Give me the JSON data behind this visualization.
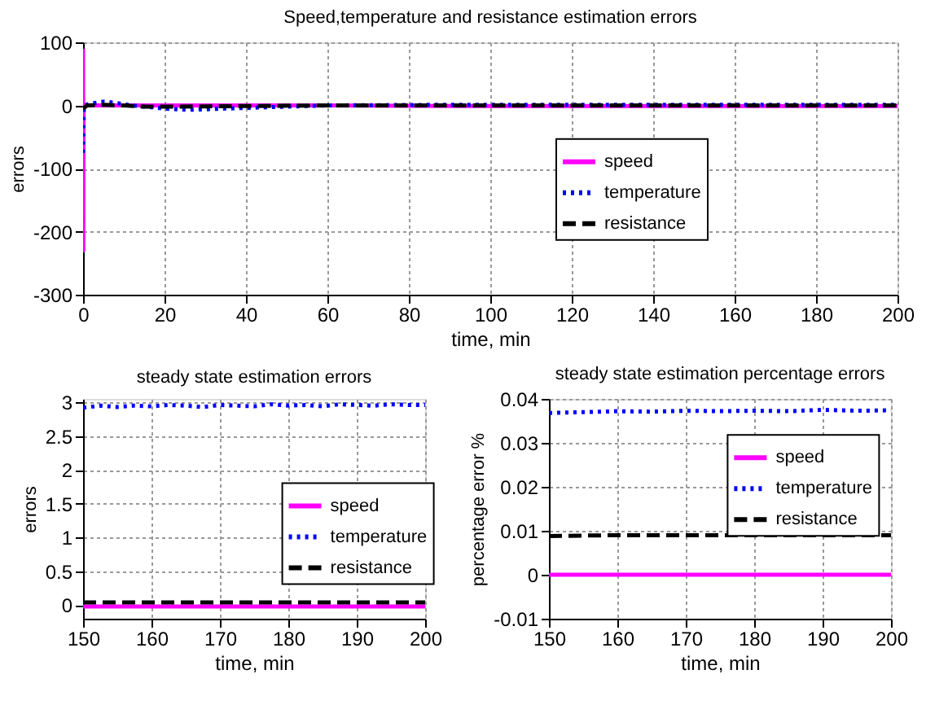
{
  "chart_data": [
    {
      "type": "line",
      "title": "Speed,temperature and resistance estimation errors",
      "xlabel": "time, min",
      "ylabel": "errors",
      "xlim": [
        0,
        200
      ],
      "xticks": [
        0,
        20,
        40,
        60,
        80,
        100,
        120,
        140,
        160,
        180,
        200
      ],
      "ylim": [
        -300,
        100
      ],
      "yticks": [
        -300,
        -200,
        -100,
        0,
        100
      ],
      "grid": true,
      "legend": "right",
      "marker": "none",
      "series": [
        {
          "name": "speed",
          "color": "#ff00ff",
          "line_style": "solid",
          "x": [
            0,
            0.05,
            0.1,
            0.3,
            5,
            20,
            60,
            100,
            200
          ],
          "values": [
            90,
            -230,
            0,
            0,
            0,
            0,
            0,
            -1,
            -1
          ]
        },
        {
          "name": "temperature",
          "color": "#0000ff",
          "line_style": "dotted",
          "x": [
            0,
            0.2,
            2,
            5,
            8,
            12,
            20,
            26,
            35,
            45,
            60,
            90,
            120,
            200
          ],
          "values": [
            -75,
            0,
            3,
            6,
            4,
            0,
            -5,
            -7,
            -5,
            -3,
            0,
            1,
            1,
            1
          ]
        },
        {
          "name": "resistance",
          "color": "#000000",
          "line_style": "dashed",
          "x": [
            0,
            1,
            5,
            10,
            15,
            20,
            40,
            60,
            200
          ],
          "values": [
            -5,
            0,
            1,
            0,
            -2,
            -2,
            -1,
            0,
            0
          ]
        }
      ]
    },
    {
      "type": "line",
      "title": "steady state estimation errors",
      "xlabel": "time, min",
      "ylabel": "errors",
      "xlim": [
        150,
        200
      ],
      "xticks": [
        150,
        160,
        170,
        180,
        190,
        200
      ],
      "ylim": [
        -0.2,
        3.05
      ],
      "yticks": [
        0,
        0.5,
        1,
        1.5,
        2,
        2.5,
        3
      ],
      "grid": true,
      "legend": "right",
      "marker": "none",
      "series": [
        {
          "name": "speed",
          "color": "#ff00ff",
          "line_style": "solid",
          "x": [
            150,
            155,
            160,
            165,
            170,
            175,
            180,
            185,
            190,
            195,
            200
          ],
          "values": [
            -0.02,
            -0.02,
            -0.02,
            -0.02,
            -0.02,
            -0.02,
            -0.02,
            -0.02,
            -0.02,
            -0.02,
            -0.02
          ]
        },
        {
          "name": "temperature",
          "color": "#0000ff",
          "line_style": "dotted",
          "x": [
            150,
            152.5,
            155,
            157.5,
            160,
            162.5,
            165,
            167.5,
            170,
            172.5,
            175,
            177.5,
            180,
            182.5,
            185,
            187.5,
            190,
            192.5,
            195,
            197.5,
            200
          ],
          "values": [
            2.92,
            2.95,
            2.93,
            2.95,
            2.94,
            2.96,
            2.95,
            2.93,
            2.96,
            2.95,
            2.94,
            2.97,
            2.95,
            2.96,
            2.94,
            2.97,
            2.96,
            2.95,
            2.97,
            2.96,
            2.96
          ]
        },
        {
          "name": "resistance",
          "color": "#000000",
          "line_style": "dashed",
          "x": [
            150,
            160,
            170,
            180,
            190,
            200
          ],
          "values": [
            0.04,
            0.04,
            0.04,
            0.04,
            0.04,
            0.04
          ]
        }
      ]
    },
    {
      "type": "line",
      "title": "steady state estimation percentage errors",
      "xlabel": "time, min",
      "ylabel": "percentage error %",
      "xlim": [
        150,
        200
      ],
      "xticks": [
        150,
        160,
        170,
        180,
        190,
        200
      ],
      "ylim": [
        -0.01,
        0.04
      ],
      "yticks": [
        -0.01,
        0,
        0.01,
        0.02,
        0.03,
        0.04
      ],
      "grid": true,
      "legend": "top right",
      "marker": "none",
      "series": [
        {
          "name": "speed",
          "color": "#ff00ff",
          "line_style": "solid",
          "x": [
            150,
            160,
            170,
            180,
            190,
            200
          ],
          "values": [
            0,
            0,
            0,
            0,
            0,
            0
          ]
        },
        {
          "name": "temperature",
          "color": "#0000ff",
          "line_style": "dotted",
          "x": [
            150,
            155,
            160,
            165,
            170,
            175,
            180,
            185,
            190,
            195,
            200
          ],
          "values": [
            0.0368,
            0.037,
            0.0372,
            0.0371,
            0.0373,
            0.0372,
            0.0373,
            0.0372,
            0.0375,
            0.0373,
            0.0374
          ]
        },
        {
          "name": "resistance",
          "color": "#000000",
          "line_style": "dashed",
          "x": [
            150,
            155,
            160,
            170,
            180,
            190,
            200
          ],
          "values": [
            0.0088,
            0.0089,
            0.009,
            0.009,
            0.009,
            0.009,
            0.009
          ]
        }
      ]
    }
  ]
}
